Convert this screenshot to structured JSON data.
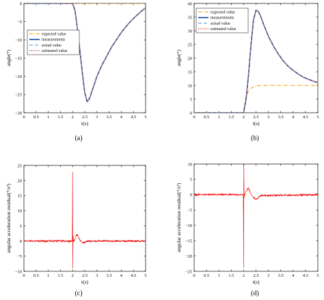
{
  "chart_data": [
    {
      "type": "line",
      "caption": "(a)",
      "xlabel": "t(s)",
      "ylabel": "angle(°)",
      "xlim": [
        0,
        5
      ],
      "ylim": [
        -30,
        0
      ],
      "xticks": [
        "0",
        "0.5",
        "1",
        "1.5",
        "2",
        "2.5",
        "3",
        "3.5",
        "4",
        "4.5",
        "5"
      ],
      "yticks": [
        "0",
        "−5",
        "−10",
        "−15",
        "−20",
        "−25",
        "−30"
      ],
      "ytick_values": [
        0,
        -5,
        -10,
        -15,
        -20,
        -25,
        -30
      ],
      "legend": "upper-left",
      "series": [
        {
          "name": "expected value",
          "color": "#edb120",
          "style": "dash-dot",
          "x": [
            0,
            5
          ],
          "y": [
            0,
            0
          ]
        },
        {
          "name": "measurements",
          "color": "#0044aa",
          "style": "solid",
          "x": [
            0,
            2,
            2.1,
            2.2,
            2.3,
            2.4,
            2.5,
            2.6,
            2.7,
            2.8,
            2.9,
            3.0,
            3.2,
            3.4,
            3.6,
            3.8,
            4.0,
            4.2,
            4.4,
            4.6,
            4.8,
            5.0
          ],
          "y": [
            0,
            0,
            -2,
            -7,
            -13,
            -19,
            -24.5,
            -27,
            -26,
            -24,
            -22,
            -20,
            -17,
            -14.5,
            -12,
            -10,
            -8,
            -6.3,
            -4.8,
            -3.5,
            -2.3,
            -1.2
          ]
        },
        {
          "name": "actual value",
          "color": "#66aaee",
          "style": "dashed",
          "x": [
            0,
            2,
            2.1,
            2.2,
            2.3,
            2.4,
            2.5,
            2.6,
            2.7,
            2.8,
            2.9,
            3.0,
            3.2,
            3.4,
            3.6,
            3.8,
            4.0,
            4.2,
            4.4,
            4.6,
            4.8,
            5.0
          ],
          "y": [
            0,
            0,
            -2,
            -7,
            -13,
            -19,
            -24.5,
            -27,
            -26,
            -24,
            -22,
            -20,
            -17,
            -14.5,
            -12,
            -10,
            -8,
            -6.3,
            -4.8,
            -3.5,
            -2.3,
            -1.2
          ]
        },
        {
          "name": "estimated value",
          "color": "#cc3311",
          "style": "dotted",
          "x": [
            0,
            2,
            2.1,
            2.2,
            2.3,
            2.4,
            2.5,
            2.6,
            2.7,
            2.8,
            2.9,
            3.0,
            3.2,
            3.4,
            3.6,
            3.8,
            4.0,
            4.2,
            4.4,
            4.6,
            4.8,
            5.0
          ],
          "y": [
            0,
            0,
            -2,
            -7,
            -13,
            -19,
            -24.5,
            -27,
            -26,
            -24,
            -22,
            -20,
            -17,
            -14.5,
            -12,
            -10,
            -8,
            -6.3,
            -4.8,
            -3.5,
            -2.3,
            -1.2
          ]
        }
      ]
    },
    {
      "type": "line",
      "caption": "(b)",
      "xlabel": "t(s)",
      "ylabel": "angle(°)",
      "xlim": [
        0,
        5
      ],
      "ylim": [
        0,
        40
      ],
      "xticks": [
        "0",
        "0.5",
        "1",
        "1.5",
        "2",
        "2.5",
        "3",
        "3.5",
        "4",
        "4.5",
        "5"
      ],
      "yticks": [
        "0",
        "5",
        "10",
        "15",
        "20",
        "25",
        "30",
        "35",
        "40"
      ],
      "ytick_values": [
        0,
        5,
        10,
        15,
        20,
        25,
        30,
        35,
        40
      ],
      "legend": "top-left",
      "series": [
        {
          "name": "expected value",
          "color": "#edb120",
          "style": "dash-dot",
          "x": [
            0,
            2,
            2.05,
            2.1,
            2.2,
            2.3,
            2.4,
            2.6,
            3.0,
            5.0
          ],
          "y": [
            0,
            0,
            3.5,
            6,
            8,
            9,
            9.5,
            9.9,
            10,
            10
          ]
        },
        {
          "name": "measurements",
          "color": "#0044aa",
          "style": "solid",
          "x": [
            0,
            2,
            2.1,
            2.2,
            2.3,
            2.4,
            2.5,
            2.6,
            2.7,
            2.8,
            3.0,
            3.2,
            3.4,
            3.6,
            3.8,
            4.0,
            4.2,
            4.4,
            4.6,
            4.8,
            5.0
          ],
          "y": [
            0,
            0,
            5,
            14,
            25,
            34,
            37.5,
            37,
            35,
            32.5,
            28,
            24.5,
            21.5,
            19,
            17,
            15.5,
            14.2,
            13.1,
            12.3,
            11.6,
            11
          ]
        },
        {
          "name": "actual value",
          "color": "#66aaee",
          "style": "dashed",
          "x": [
            0,
            2,
            2.1,
            2.2,
            2.3,
            2.4,
            2.5,
            2.6,
            2.7,
            2.8,
            3.0,
            3.2,
            3.4,
            3.6,
            3.8,
            4.0,
            4.2,
            4.4,
            4.6,
            4.8,
            5.0
          ],
          "y": [
            0,
            0,
            5,
            14,
            25,
            34,
            37.5,
            37,
            35,
            32.5,
            28,
            24.5,
            21.5,
            19,
            17,
            15.5,
            14.2,
            13.1,
            12.3,
            11.6,
            11
          ]
        },
        {
          "name": "estimated value",
          "color": "#cc3311",
          "style": "dotted",
          "x": [
            0,
            2,
            2.1,
            2.2,
            2.3,
            2.4,
            2.5,
            2.6,
            2.7,
            2.8,
            3.0,
            3.2,
            3.4,
            3.6,
            3.8,
            4.0,
            4.2,
            4.4,
            4.6,
            4.8,
            5.0
          ],
          "y": [
            0,
            0,
            5,
            14,
            25,
            34,
            37.5,
            37,
            35,
            32.5,
            28,
            24.5,
            21.5,
            19,
            17,
            15.5,
            14.2,
            13.1,
            12.3,
            11.6,
            11
          ]
        }
      ]
    },
    {
      "type": "line",
      "caption": "(c)",
      "xlabel": "t(s)",
      "ylabel": "angular acceleration residual(°/s²)",
      "xlim": [
        0,
        5
      ],
      "ylim": [
        -10,
        25
      ],
      "xticks": [
        "0",
        "0.5",
        "1",
        "1.5",
        "2",
        "2.5",
        "3",
        "3.5",
        "4",
        "4.5",
        "5"
      ],
      "yticks": [
        "−10",
        "−5",
        "0",
        "5",
        "10",
        "15",
        "20",
        "25"
      ],
      "ytick_values": [
        -10,
        -5,
        0,
        5,
        10,
        15,
        20,
        25
      ],
      "noise_amplitude": 0.5,
      "series": [
        {
          "name": "",
          "color": "#ee0000",
          "style": "solid",
          "x": [
            0,
            1.99,
            2.0,
            2.01,
            2.02,
            2.03,
            2.05,
            2.1,
            2.15,
            2.2,
            2.25,
            2.3,
            2.4,
            2.5,
            2.6,
            2.7,
            5.0
          ],
          "y": [
            0,
            0,
            22.5,
            -9,
            2,
            0,
            0,
            0.8,
            1.8,
            2.0,
            1.2,
            0.3,
            -0.6,
            -0.4,
            -0.1,
            0,
            0
          ]
        }
      ]
    },
    {
      "type": "line",
      "caption": "(d)",
      "xlabel": "t(s)",
      "ylabel": "angular acceleration residual(°/s²)",
      "xlim": [
        0,
        5
      ],
      "ylim": [
        -25,
        10
      ],
      "xticks": [
        "0",
        "0.5",
        "1",
        "1.5",
        "2",
        "2.5",
        "3",
        "3.5",
        "4",
        "4.5",
        "5"
      ],
      "yticks": [
        "−25",
        "−20",
        "−15",
        "−10",
        "−5",
        "0",
        "5",
        "10"
      ],
      "ytick_values": [
        -25,
        -20,
        -15,
        -10,
        -5,
        0,
        5,
        10
      ],
      "noise_amplitude": 0.5,
      "series": [
        {
          "name": "",
          "color": "#ee0000",
          "style": "solid",
          "x": [
            0,
            1.99,
            2.0,
            2.01,
            2.02,
            2.03,
            2.05,
            2.1,
            2.15,
            2.2,
            2.25,
            2.3,
            2.4,
            2.5,
            2.6,
            2.7,
            5.0
          ],
          "y": [
            0,
            0,
            -23.5,
            10,
            -1,
            0,
            0,
            1.0,
            1.8,
            2.0,
            1.3,
            0.2,
            -1.0,
            -1.5,
            -0.9,
            -0.3,
            0
          ]
        }
      ]
    }
  ]
}
